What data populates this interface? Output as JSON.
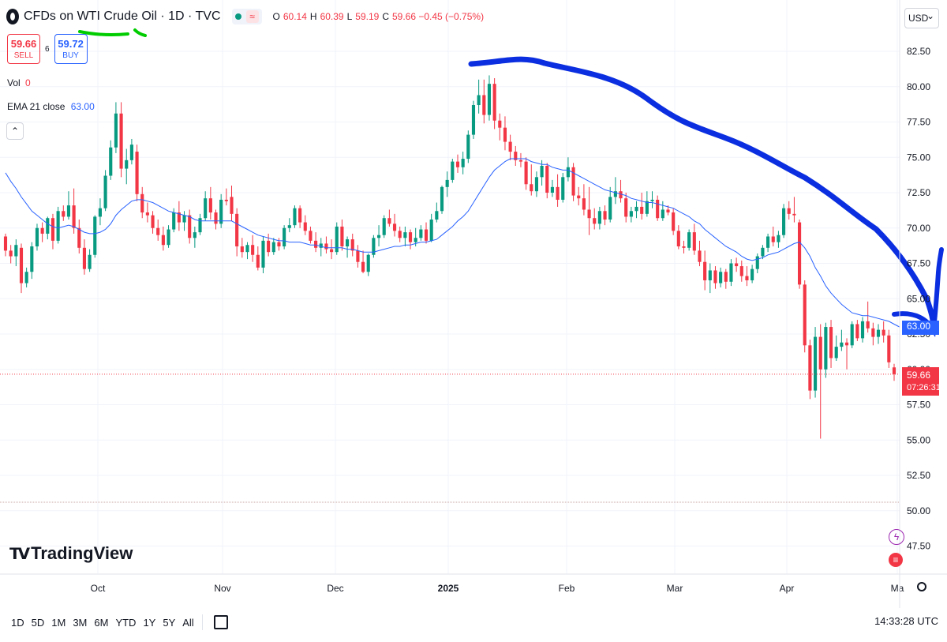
{
  "header": {
    "symbol_title": "CFDs on WTI Crude Oil · 1D · TVC",
    "ohlc": [
      {
        "k": "O",
        "v": "60.14"
      },
      {
        "k": "H",
        "v": "60.39"
      },
      {
        "k": "L",
        "v": "59.19"
      },
      {
        "k": "C",
        "v": "59.66 −0.45 (−0.75%)"
      }
    ]
  },
  "trade": {
    "sell_price": "59.66",
    "sell_label": "SELL",
    "spread": "6",
    "buy_price": "59.72",
    "buy_label": "BUY"
  },
  "indicators": {
    "vol_label": "Vol",
    "vol_value": "0",
    "ema_label": "EMA 21 close",
    "ema_value": "63.00"
  },
  "logo_text": "TradingView",
  "currency": "USD",
  "price_tags": {
    "ema": "63.00",
    "last_price": "59.66",
    "countdown": "07:26:31"
  },
  "timeframes": [
    "1D",
    "5D",
    "1M",
    "3M",
    "6M",
    "YTD",
    "1Y",
    "5Y",
    "All"
  ],
  "time_utc": "14:33:28 UTC",
  "colors": {
    "up": "#089981",
    "down": "#f23645",
    "ema": "#2962ff",
    "annotation_blue": "#0b2fe0",
    "annotation_green": "#00cc00"
  },
  "chart_data": {
    "type": "candlestick",
    "y_ticks": [
      "82.50",
      "80.00",
      "77.50",
      "75.00",
      "72.50",
      "70.00",
      "67.50",
      "65.00",
      "62.50",
      "60.00",
      "57.50",
      "55.00",
      "52.50",
      "50.00",
      "47.50"
    ],
    "ylim": [
      46.0,
      84.5
    ],
    "x_ticks": [
      "Oct",
      "Nov",
      "Dec",
      "2025",
      "Feb",
      "Mar",
      "Apr",
      "Ma"
    ],
    "grid": true,
    "candles": [
      [
        69.4,
        69.6,
        68.0,
        68.4
      ],
      [
        68.4,
        68.8,
        67.5,
        68.0
      ],
      [
        68.0,
        69.2,
        67.3,
        68.8
      ],
      [
        68.6,
        68.9,
        65.4,
        66.1
      ],
      [
        66.1,
        67.2,
        65.8,
        66.9
      ],
      [
        66.9,
        69.0,
        66.4,
        68.7
      ],
      [
        68.7,
        70.3,
        68.4,
        70.0
      ],
      [
        70.0,
        70.4,
        69.0,
        69.6
      ],
      [
        69.6,
        70.8,
        69.2,
        70.7
      ],
      [
        70.7,
        71.0,
        68.5,
        69.1
      ],
      [
        69.1,
        71.5,
        68.9,
        71.2
      ],
      [
        71.2,
        71.6,
        70.5,
        70.8
      ],
      [
        70.8,
        72.6,
        70.6,
        71.6
      ],
      [
        71.6,
        72.8,
        69.6,
        70.0
      ],
      [
        70.0,
        70.6,
        68.2,
        68.6
      ],
      [
        68.6,
        69.2,
        66.7,
        67.1
      ],
      [
        67.1,
        68.5,
        66.9,
        68.1
      ],
      [
        68.1,
        70.9,
        67.9,
        70.8
      ],
      [
        70.8,
        72.1,
        70.2,
        71.4
      ],
      [
        71.4,
        74.1,
        71.2,
        73.7
      ],
      [
        73.7,
        76.2,
        73.4,
        75.7
      ],
      [
        75.7,
        78.9,
        75.3,
        78.1
      ],
      [
        78.1,
        78.9,
        73.6,
        74.2
      ],
      [
        74.2,
        75.6,
        73.1,
        74.8
      ],
      [
        74.8,
        76.3,
        74.5,
        75.9
      ],
      [
        75.4,
        75.9,
        71.9,
        72.4
      ],
      [
        72.4,
        72.9,
        70.7,
        71.1
      ],
      [
        71.1,
        71.8,
        70.4,
        70.9
      ],
      [
        70.9,
        71.2,
        69.6,
        70.0
      ],
      [
        70.0,
        70.6,
        69.1,
        69.5
      ],
      [
        69.5,
        70.1,
        68.4,
        68.8
      ],
      [
        68.8,
        70.2,
        68.6,
        69.9
      ],
      [
        69.9,
        71.4,
        69.7,
        71.1
      ],
      [
        71.1,
        71.9,
        69.8,
        70.4
      ],
      [
        70.4,
        71.2,
        69.8,
        70.9
      ],
      [
        70.9,
        71.3,
        68.9,
        69.3
      ],
      [
        69.3,
        70.1,
        68.6,
        69.7
      ],
      [
        69.7,
        71.0,
        69.5,
        70.7
      ],
      [
        70.7,
        72.6,
        70.5,
        72.1
      ],
      [
        72.1,
        72.9,
        70.6,
        71.1
      ],
      [
        71.1,
        71.3,
        69.9,
        70.3
      ],
      [
        70.3,
        72.4,
        70.0,
        72.0
      ],
      [
        72.0,
        72.8,
        71.6,
        71.9
      ],
      [
        72.2,
        73.0,
        70.5,
        71.0
      ],
      [
        71.0,
        71.4,
        68.0,
        68.7
      ],
      [
        68.7,
        69.3,
        67.9,
        68.3
      ],
      [
        68.3,
        69.0,
        67.8,
        68.8
      ],
      [
        68.8,
        69.5,
        67.6,
        68.1
      ],
      [
        68.1,
        68.7,
        67.0,
        67.2
      ],
      [
        67.2,
        69.4,
        66.8,
        69.1
      ],
      [
        69.1,
        69.6,
        68.0,
        68.3
      ],
      [
        68.3,
        69.3,
        68.1,
        69.0
      ],
      [
        69.0,
        69.3,
        68.4,
        68.7
      ],
      [
        68.7,
        70.2,
        68.5,
        70.0
      ],
      [
        70.0,
        70.7,
        69.7,
        70.2
      ],
      [
        70.2,
        71.6,
        70.0,
        71.4
      ],
      [
        71.4,
        71.6,
        70.0,
        70.4
      ],
      [
        70.4,
        70.9,
        69.5,
        69.8
      ],
      [
        69.8,
        70.1,
        68.9,
        69.1
      ],
      [
        69.1,
        69.7,
        68.3,
        68.6
      ],
      [
        68.6,
        69.3,
        68.0,
        68.9
      ],
      [
        68.9,
        69.4,
        68.2,
        68.5
      ],
      [
        68.5,
        69.2,
        67.8,
        68.3
      ],
      [
        68.3,
        70.4,
        68.1,
        70.1
      ],
      [
        70.1,
        70.6,
        68.4,
        68.7
      ],
      [
        68.7,
        69.4,
        67.9,
        69.2
      ],
      [
        69.2,
        69.6,
        68.0,
        68.4
      ],
      [
        68.4,
        68.8,
        67.2,
        67.6
      ],
      [
        67.6,
        68.4,
        66.8,
        66.9
      ],
      [
        66.9,
        68.2,
        66.6,
        68.1
      ],
      [
        68.1,
        69.5,
        67.9,
        69.3
      ],
      [
        69.3,
        70.2,
        68.7,
        69.5
      ],
      [
        69.5,
        70.9,
        69.3,
        70.7
      ],
      [
        70.7,
        71.3,
        70.1,
        70.3
      ],
      [
        70.3,
        71.0,
        69.4,
        69.8
      ],
      [
        69.8,
        70.1,
        69.0,
        69.3
      ],
      [
        69.3,
        70.1,
        68.7,
        69.7
      ],
      [
        69.7,
        69.9,
        68.5,
        69.0
      ],
      [
        69.0,
        70.0,
        68.7,
        69.3
      ],
      [
        69.3,
        70.2,
        69.1,
        69.9
      ],
      [
        69.9,
        70.4,
        68.9,
        69.1
      ],
      [
        69.1,
        71.0,
        69.0,
        70.6
      ],
      [
        70.6,
        71.8,
        70.4,
        71.2
      ],
      [
        71.2,
        73.0,
        71.0,
        72.9
      ],
      [
        72.9,
        74.0,
        72.2,
        73.4
      ],
      [
        73.4,
        74.9,
        73.2,
        74.7
      ],
      [
        74.7,
        75.2,
        73.9,
        74.3
      ],
      [
        74.3,
        75.4,
        73.8,
        74.9
      ],
      [
        74.9,
        76.9,
        74.6,
        76.6
      ],
      [
        76.6,
        79.0,
        76.3,
        78.7
      ],
      [
        78.7,
        80.5,
        78.1,
        79.4
      ],
      [
        79.4,
        80.5,
        77.4,
        78.0
      ],
      [
        78.0,
        80.8,
        77.6,
        80.2
      ],
      [
        80.2,
        80.6,
        77.0,
        77.6
      ],
      [
        77.6,
        78.1,
        76.2,
        77.1
      ],
      [
        77.1,
        77.9,
        75.5,
        76.1
      ],
      [
        76.1,
        76.6,
        74.8,
        75.4
      ],
      [
        75.4,
        75.8,
        74.4,
        74.8
      ],
      [
        74.8,
        75.3,
        74.3,
        74.7
      ],
      [
        74.7,
        75.0,
        72.7,
        73.1
      ],
      [
        73.1,
        74.5,
        72.3,
        72.6
      ],
      [
        72.6,
        74.0,
        72.2,
        73.6
      ],
      [
        73.6,
        74.8,
        73.0,
        74.4
      ],
      [
        74.4,
        74.6,
        72.1,
        72.5
      ],
      [
        72.5,
        73.4,
        72.2,
        72.9
      ],
      [
        72.9,
        73.8,
        71.5,
        72.0
      ],
      [
        72.0,
        73.9,
        71.8,
        73.6
      ],
      [
        73.6,
        75.0,
        73.3,
        74.3
      ],
      [
        74.3,
        74.6,
        71.9,
        72.3
      ],
      [
        72.3,
        72.9,
        71.6,
        72.1
      ],
      [
        72.1,
        73.1,
        70.9,
        71.3
      ],
      [
        71.3,
        72.9,
        69.5,
        70.7
      ],
      [
        70.7,
        71.4,
        69.9,
        70.3
      ],
      [
        70.3,
        71.5,
        69.9,
        71.2
      ],
      [
        71.2,
        71.6,
        70.2,
        70.6
      ],
      [
        70.6,
        72.9,
        70.4,
        72.2
      ],
      [
        72.2,
        73.6,
        71.7,
        72.6
      ],
      [
        72.6,
        73.4,
        71.8,
        72.1
      ],
      [
        72.1,
        72.5,
        70.4,
        70.8
      ],
      [
        70.8,
        71.5,
        70.4,
        71.2
      ],
      [
        71.2,
        71.9,
        70.7,
        71.5
      ],
      [
        71.5,
        72.5,
        70.6,
        71.0
      ],
      [
        71.0,
        72.6,
        70.8,
        71.9
      ],
      [
        71.9,
        72.6,
        71.4,
        72.0
      ],
      [
        72.0,
        72.3,
        70.5,
        70.7
      ],
      [
        70.7,
        71.9,
        70.5,
        71.3
      ],
      [
        71.3,
        71.6,
        70.9,
        71.1
      ],
      [
        71.1,
        71.4,
        69.5,
        69.8
      ],
      [
        69.8,
        70.2,
        68.5,
        68.7
      ],
      [
        68.7,
        69.1,
        68.2,
        68.6
      ],
      [
        68.6,
        69.9,
        68.4,
        69.7
      ],
      [
        69.7,
        70.3,
        68.1,
        68.4
      ],
      [
        68.4,
        69.1,
        67.3,
        67.6
      ],
      [
        67.6,
        68.4,
        65.6,
        66.3
      ],
      [
        66.3,
        67.5,
        65.4,
        67.0
      ],
      [
        67.0,
        67.3,
        65.7,
        66.1
      ],
      [
        66.1,
        67.2,
        65.8,
        66.9
      ],
      [
        66.9,
        67.1,
        65.7,
        66.2
      ],
      [
        66.2,
        67.8,
        65.9,
        67.5
      ],
      [
        67.5,
        67.9,
        66.9,
        67.3
      ],
      [
        67.3,
        67.7,
        66.2,
        66.6
      ],
      [
        66.6,
        67.3,
        65.9,
        66.3
      ],
      [
        66.3,
        67.4,
        66.1,
        67.1
      ],
      [
        67.1,
        68.2,
        66.8,
        68.0
      ],
      [
        68.0,
        68.8,
        67.8,
        68.6
      ],
      [
        68.6,
        69.6,
        68.3,
        69.4
      ],
      [
        69.4,
        70.1,
        68.7,
        69.0
      ],
      [
        69.0,
        69.8,
        68.6,
        69.5
      ],
      [
        69.5,
        71.7,
        69.3,
        71.4
      ],
      [
        71.4,
        71.9,
        70.6,
        71.0
      ],
      [
        71.0,
        72.2,
        70.4,
        70.9
      ],
      [
        70.4,
        70.6,
        65.7,
        66.0
      ],
      [
        66.0,
        66.3,
        61.2,
        61.7
      ],
      [
        61.7,
        62.1,
        57.9,
        58.5
      ],
      [
        58.5,
        63.0,
        58.0,
        62.3
      ],
      [
        62.3,
        63.2,
        55.1,
        60.0
      ],
      [
        60.0,
        63.3,
        59.4,
        63.0
      ],
      [
        63.0,
        63.5,
        60.1,
        60.8
      ],
      [
        60.8,
        62.4,
        60.6,
        61.6
      ],
      [
        61.6,
        62.8,
        61.3,
        61.9
      ],
      [
        61.9,
        62.2,
        60.0,
        61.7
      ],
      [
        61.7,
        63.4,
        61.5,
        63.2
      ],
      [
        63.2,
        63.5,
        62.0,
        62.2
      ],
      [
        62.2,
        63.7,
        61.9,
        63.4
      ],
      [
        63.4,
        64.8,
        62.6,
        62.9
      ],
      [
        62.9,
        63.3,
        61.7,
        62.3
      ],
      [
        62.3,
        63.2,
        61.8,
        62.8
      ],
      [
        62.8,
        63.4,
        61.9,
        62.4
      ],
      [
        62.4,
        62.8,
        60.1,
        60.5
      ],
      [
        60.14,
        60.39,
        59.19,
        59.66
      ]
    ],
    "ema21": [
      73.9,
      73.3,
      72.8,
      72.2,
      71.7,
      71.2,
      70.9,
      70.6,
      70.3,
      70.1,
      70.0,
      70.1,
      70.2,
      70.1,
      69.9,
      69.7,
      69.6,
      69.6,
      69.7,
      69.9,
      70.3,
      70.9,
      71.3,
      71.6,
      71.9,
      72.0,
      72.0,
      71.9,
      71.8,
      71.6,
      71.4,
      71.2,
      71.1,
      71.0,
      70.9,
      70.8,
      70.6,
      70.5,
      70.5,
      70.5,
      70.5,
      70.5,
      70.5,
      70.5,
      70.3,
      70.1,
      69.9,
      69.7,
      69.5,
      69.4,
      69.3,
      69.2,
      69.1,
      69.1,
      69.0,
      69.0,
      69.0,
      68.9,
      68.8,
      68.8,
      68.7,
      68.6,
      68.6,
      68.6,
      68.6,
      68.5,
      68.5,
      68.4,
      68.3,
      68.3,
      68.3,
      68.4,
      68.5,
      68.6,
      68.7,
      68.7,
      68.8,
      68.8,
      68.9,
      69.0,
      69.0,
      69.1,
      69.2,
      69.5,
      69.8,
      70.1,
      70.5,
      70.8,
      71.2,
      71.8,
      72.4,
      73.0,
      73.6,
      74.1,
      74.4,
      74.7,
      74.9,
      74.9,
      74.9,
      74.9,
      74.7,
      74.6,
      74.5,
      74.5,
      74.3,
      74.2,
      74.1,
      74.1,
      73.9,
      73.7,
      73.5,
      73.3,
      73.1,
      72.9,
      72.7,
      72.6,
      72.5,
      72.4,
      72.3,
      72.1,
      72.0,
      71.9,
      71.8,
      71.8,
      71.7,
      71.6,
      71.5,
      71.4,
      71.2,
      71.0,
      70.8,
      70.5,
      70.3,
      69.9,
      69.6,
      69.3,
      69.0,
      68.7,
      68.5,
      68.3,
      68.0,
      67.8,
      67.7,
      67.8,
      67.9,
      68.1,
      68.2,
      68.3,
      68.5,
      68.7,
      68.9,
      69.0,
      68.6,
      68.0,
      67.2,
      66.6,
      65.9,
      65.4,
      65.0,
      64.6,
      64.3,
      64.0,
      63.9,
      63.8,
      63.8,
      63.7,
      63.6,
      63.5,
      63.4,
      63.2,
      63.0
    ]
  }
}
